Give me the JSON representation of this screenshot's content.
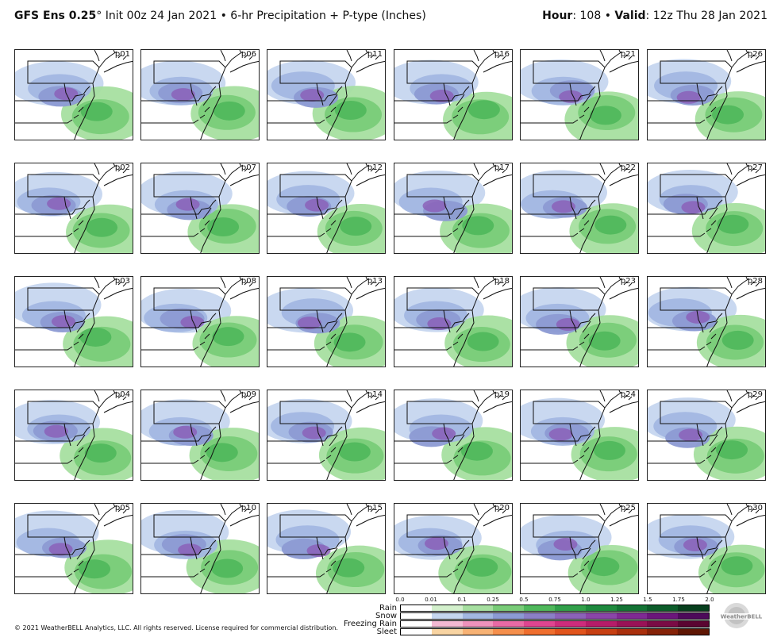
{
  "header": {
    "model": "GFS Ens 0.25",
    "degree": "°",
    "init": "Init 00z 24 Jan 2021",
    "separator": "•",
    "product": "6-hr Precipitation + P-type (Inches)",
    "hour_label": "Hour",
    "hour_value": ": 108",
    "valid_label": "Valid",
    "valid_value": ": 12z Thu 28 Jan 2021"
  },
  "panels": [
    {
      "label": "p01"
    },
    {
      "label": "p06"
    },
    {
      "label": "p11"
    },
    {
      "label": "p16"
    },
    {
      "label": "p21"
    },
    {
      "label": "p26"
    },
    {
      "label": "p02"
    },
    {
      "label": "p07"
    },
    {
      "label": "p12"
    },
    {
      "label": "p17"
    },
    {
      "label": "p22"
    },
    {
      "label": "p27"
    },
    {
      "label": "p03"
    },
    {
      "label": "p08"
    },
    {
      "label": "p13"
    },
    {
      "label": "p18"
    },
    {
      "label": "p23"
    },
    {
      "label": "p28"
    },
    {
      "label": "p04"
    },
    {
      "label": "p09"
    },
    {
      "label": "p14"
    },
    {
      "label": "p19"
    },
    {
      "label": "p24"
    },
    {
      "label": "p29"
    },
    {
      "label": "p05"
    },
    {
      "label": "p10"
    },
    {
      "label": "p15"
    },
    {
      "label": "p20"
    },
    {
      "label": "p25"
    },
    {
      "label": "p30"
    }
  ],
  "legend": {
    "ticks": [
      "0.0",
      "0.01",
      "0.1",
      "0.25",
      "0.5",
      "0.75",
      "1.0",
      "1.25",
      "1.5",
      "1.75",
      "2.0"
    ],
    "rows": [
      {
        "name": "Rain",
        "colors": [
          "#ffffff",
          "#d3f0cc",
          "#a6dfa0",
          "#79cc78",
          "#4fb85b",
          "#31a04a",
          "#1e8a3e",
          "#137334",
          "#0c5c2a",
          "#073f1d"
        ]
      },
      {
        "name": "Snow",
        "colors": [
          "#ffffff",
          "#c6d6ef",
          "#a3b7e1",
          "#8c9ad3",
          "#8b7fc6",
          "#8b62b8",
          "#8a45a8",
          "#7f2a93",
          "#6b167b",
          "#4d0a5a"
        ]
      },
      {
        "name": "Freezing Rain",
        "colors": [
          "#ffffff",
          "#f3b9d3",
          "#ee92bc",
          "#e86aa5",
          "#df4590",
          "#cd2c7c",
          "#b51c69",
          "#991257",
          "#7a0b45",
          "#5a0531"
        ]
      },
      {
        "name": "Sleet",
        "colors": [
          "#ffffff",
          "#f8d4a2",
          "#f7b274",
          "#f58f4c",
          "#ef6e2e",
          "#e1541c",
          "#c73f12",
          "#a92f0c",
          "#852207",
          "#5e1603"
        ]
      }
    ]
  },
  "footer": {
    "copyright": "© 2021 WeatherBELL Analytics, LLC. All rights reserved. License required for commercial distribution.",
    "logo_text": "WeatherBELL"
  }
}
